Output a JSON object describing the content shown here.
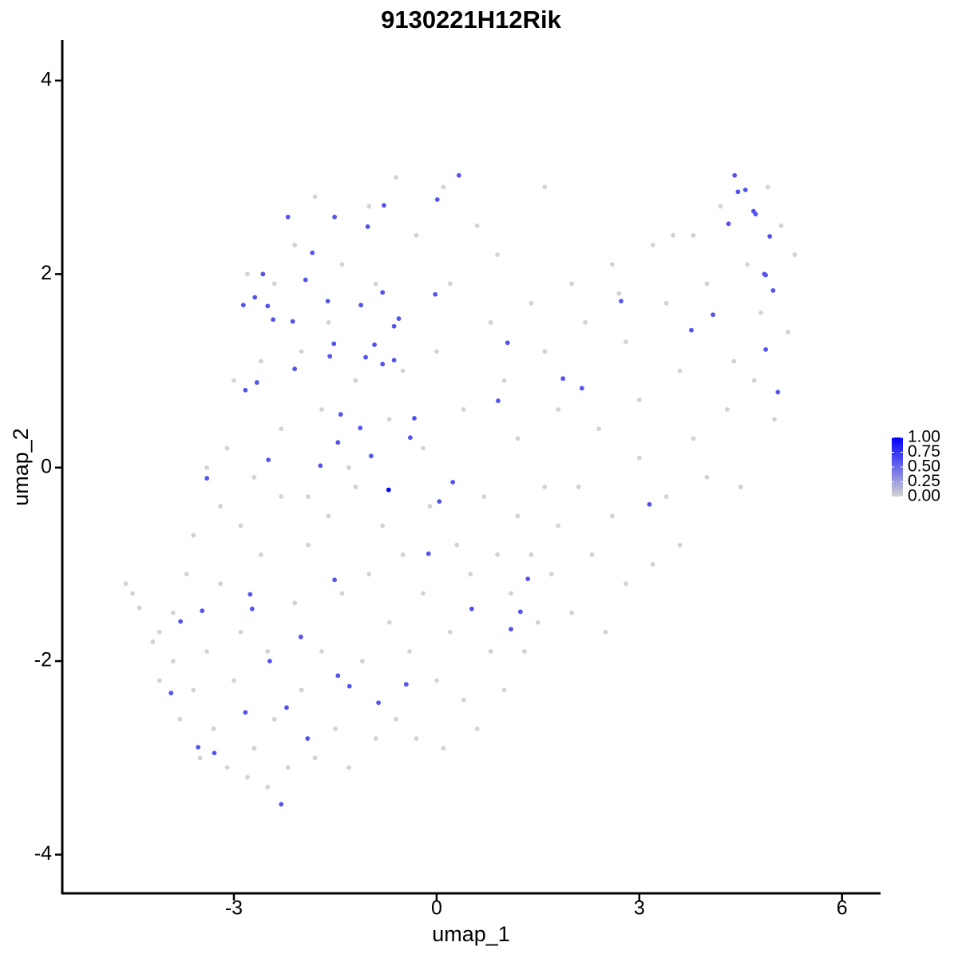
{
  "chart_data": {
    "type": "scatter",
    "title": "9130221H12Rik",
    "x_label": "umap_1",
    "y_label": "umap_2",
    "xlim": [
      -5.54,
      6.57
    ],
    "ylim": [
      -4.4,
      4.42
    ],
    "xticks": [
      -3,
      0,
      3,
      6
    ],
    "yticks": [
      -4,
      -2,
      0,
      2,
      4
    ],
    "grid": false,
    "colorbar": {
      "color_low": "#d3d3d3",
      "color_high": "#0000ff",
      "lim": [
        0,
        1
      ],
      "ticks": [
        {
          "value": 0,
          "label": "0.00"
        },
        {
          "value": 0.25,
          "label": "0.25"
        },
        {
          "value": 0.5,
          "label": "0.50"
        },
        {
          "value": 0.75,
          "label": "0.75"
        },
        {
          "value": 1,
          "label": "1.00"
        }
      ]
    },
    "x": [
      -4.6,
      -4.5,
      -4.4,
      -4.2,
      -4.1,
      -3.9,
      -3.8,
      -3.6,
      -3.5,
      -3.4,
      -3.3,
      -3.2,
      -3.1,
      -3.0,
      -2.9,
      -2.9,
      -2.8,
      -2.7,
      -2.6,
      -2.5,
      -2.5,
      -2.4,
      -2.3,
      -2.2,
      -2.1,
      -2.0,
      -1.9,
      -1.8,
      -1.7,
      -1.6,
      -1.5,
      -1.4,
      -1.3,
      -1.2,
      -1.1,
      -1.0,
      -0.9,
      -0.8,
      -0.7,
      -0.6,
      -0.5,
      -0.4,
      -0.3,
      -0.2,
      -0.1,
      0.0,
      0.1,
      0.2,
      0.3,
      0.4,
      0.5,
      0.6,
      0.7,
      0.8,
      0.9,
      1.0,
      1.1,
      1.2,
      1.3,
      1.4,
      1.5,
      1.6,
      1.7,
      1.8,
      2.0,
      2.1,
      2.3,
      2.5,
      2.6,
      2.8,
      3.0,
      3.2,
      3.4,
      3.6,
      3.8,
      4.0,
      4.3,
      4.5,
      4.7,
      5.0,
      5.2,
      5.3,
      5.1,
      4.8,
      4.6,
      4.4,
      4.2,
      4.0,
      3.8,
      3.6,
      3.4,
      3.2,
      3.0,
      2.8,
      2.6,
      2.4,
      2.2,
      2.0,
      1.8,
      1.6,
      1.4,
      1.2,
      1.0,
      0.8,
      0.6,
      0.4,
      0.2,
      0.1,
      0.0,
      -0.2,
      -0.3,
      -0.5,
      -0.6,
      -0.7,
      -0.9,
      -1.0,
      -1.2,
      -1.3,
      -1.4,
      -1.6,
      -1.7,
      -1.8,
      -1.9,
      -2.0,
      -2.1,
      -2.3,
      -2.4,
      -2.6,
      -2.7,
      -2.8,
      -3.0,
      -3.1,
      -3.2,
      -3.4,
      -3.6,
      -3.7,
      -3.9,
      -4.1,
      0.9,
      1.6,
      2.7,
      3.5,
      4.9,
      0.33,
      0.01,
      -0.78,
      -1.02,
      -1.51,
      -2.2,
      -1.84,
      -2.57,
      -1.94,
      -2.69,
      -2.86,
      -2.5,
      -2.42,
      -2.13,
      -1.61,
      -1.12,
      -0.8,
      -0.02,
      -0.56,
      -0.63,
      -1.52,
      -1.58,
      -0.92,
      -1.05,
      -0.63,
      -0.8,
      -2.1,
      -2.66,
      -2.83,
      -1.42,
      -1.13,
      -0.33,
      -0.39,
      -1.46,
      -0.97,
      -2.49,
      -3.4,
      -1.72,
      -0.71,
      0.24,
      0.04,
      -0.12,
      -1.51,
      1.35,
      -2.76,
      -2.73,
      -3.47,
      -3.79,
      1.24,
      0.52,
      1.1,
      -2.01,
      -2.47,
      -1.46,
      -0.45,
      -1.29,
      -3.93,
      -0.86,
      -2.22,
      -2.83,
      -1.91,
      -3.53,
      -3.29,
      -2.3,
      1.05,
      0.91,
      1.87,
      2.15,
      2.73,
      3.15,
      3.77,
      4.09,
      4.32,
      4.41,
      4.46,
      4.57,
      4.69,
      4.72,
      4.93,
      4.85,
      4.87,
      4.98,
      4.87,
      5.05
    ],
    "y": [
      -1.2,
      -1.3,
      -1.45,
      -1.8,
      -2.2,
      -2.0,
      -2.6,
      -2.3,
      -3.0,
      -1.9,
      -2.7,
      -1.2,
      -3.1,
      -2.2,
      -1.7,
      -0.6,
      -3.2,
      -2.9,
      -0.9,
      -3.3,
      -1.9,
      -2.6,
      -0.3,
      -3.1,
      -1.4,
      -2.3,
      -0.8,
      -3.0,
      -1.9,
      -0.5,
      -2.7,
      -1.3,
      -3.1,
      -0.2,
      -2.0,
      -1.1,
      -2.8,
      -0.6,
      -1.6,
      -2.6,
      -0.9,
      -1.9,
      -2.8,
      -1.3,
      -0.4,
      -2.2,
      -2.9,
      -1.7,
      -0.8,
      -2.4,
      -1.1,
      -2.7,
      -0.3,
      -1.9,
      -0.9,
      -2.3,
      -1.3,
      -0.5,
      -1.9,
      -0.9,
      -1.6,
      -0.2,
      -1.1,
      -0.6,
      -1.5,
      -0.2,
      -0.9,
      -1.7,
      -0.5,
      -1.2,
      0.1,
      -1.0,
      -0.3,
      -0.8,
      0.3,
      -0.1,
      0.6,
      -0.2,
      0.9,
      0.5,
      1.4,
      2.2,
      2.5,
      1.6,
      2.1,
      1.1,
      2.7,
      1.9,
      2.4,
      1.0,
      1.7,
      2.3,
      0.7,
      1.3,
      2.1,
      0.4,
      1.5,
      1.9,
      0.6,
      1.2,
      1.7,
      0.3,
      0.9,
      1.5,
      2.5,
      0.6,
      1.9,
      2.9,
      1.2,
      0.2,
      2.4,
      1.0,
      3.0,
      0.5,
      1.9,
      2.7,
      0.9,
      0.0,
      2.1,
      1.5,
      0.6,
      2.8,
      -0.3,
      1.2,
      2.3,
      0.4,
      1.9,
      1.1,
      -0.1,
      2.0,
      0.9,
      0.2,
      -0.4,
      0.0,
      -0.7,
      -1.1,
      -1.5,
      -1.7,
      2.2,
      2.9,
      1.8,
      2.4,
      2.9,
      3.02,
      2.77,
      2.71,
      2.49,
      2.59,
      2.59,
      2.22,
      2.0,
      1.94,
      1.76,
      1.68,
      1.67,
      1.53,
      1.51,
      1.72,
      1.68,
      1.81,
      1.79,
      1.54,
      1.46,
      1.28,
      1.15,
      1.27,
      1.14,
      1.11,
      1.07,
      1.02,
      0.88,
      0.8,
      0.55,
      0.41,
      0.51,
      0.31,
      0.26,
      0.12,
      0.08,
      -0.11,
      0.02,
      -0.23,
      -0.15,
      -0.35,
      -0.89,
      -1.16,
      -1.15,
      -1.31,
      -1.46,
      -1.48,
      -1.59,
      -1.49,
      -1.46,
      -1.67,
      -1.75,
      -2.0,
      -2.15,
      -2.24,
      -2.26,
      -2.33,
      -2.43,
      -2.48,
      -2.53,
      -2.8,
      -2.89,
      -2.95,
      -3.48,
      1.29,
      0.69,
      0.92,
      0.82,
      1.72,
      -0.38,
      1.42,
      1.58,
      2.52,
      3.02,
      2.85,
      2.87,
      2.65,
      2.62,
      2.39,
      2.0,
      1.99,
      1.83,
      1.22,
      0.78
    ],
    "values": [
      0,
      0,
      0,
      0,
      0,
      0,
      0,
      0,
      0,
      0,
      0,
      0,
      0,
      0,
      0,
      0,
      0,
      0,
      0,
      0,
      0,
      0,
      0,
      0,
      0,
      0,
      0,
      0,
      0,
      0,
      0,
      0,
      0,
      0,
      0,
      0,
      0,
      0,
      0,
      0,
      0,
      0,
      0,
      0,
      0,
      0,
      0,
      0,
      0,
      0,
      0,
      0,
      0,
      0,
      0,
      0,
      0,
      0,
      0,
      0,
      0,
      0,
      0,
      0,
      0,
      0,
      0,
      0,
      0,
      0,
      0,
      0,
      0,
      0,
      0,
      0,
      0,
      0,
      0,
      0,
      0,
      0,
      0,
      0,
      0,
      0,
      0,
      0,
      0,
      0,
      0,
      0,
      0,
      0,
      0,
      0,
      0,
      0,
      0,
      0,
      0,
      0,
      0,
      0,
      0,
      0,
      0,
      0,
      0,
      0,
      0,
      0,
      0,
      0,
      0,
      0,
      0,
      0,
      0,
      0,
      0,
      0,
      0,
      0,
      0,
      0,
      0,
      0,
      0,
      0,
      0,
      0,
      0,
      0,
      0,
      0,
      0,
      0,
      0,
      0,
      0,
      0,
      0,
      0.6,
      0.6,
      0.6,
      0.6,
      0.6,
      0.6,
      0.6,
      0.6,
      0.6,
      0.6,
      0.6,
      0.6,
      0.6,
      0.6,
      0.6,
      0.6,
      0.6,
      0.6,
      0.6,
      0.6,
      0.6,
      0.6,
      0.6,
      0.6,
      0.6,
      0.6,
      0.6,
      0.6,
      0.6,
      0.6,
      0.6,
      0.6,
      0.6,
      0.6,
      0.6,
      0.6,
      0.6,
      0.6,
      1,
      0.6,
      0.6,
      0.6,
      0.6,
      0.6,
      0.6,
      0.6,
      0.6,
      0.6,
      0.6,
      0.6,
      0.6,
      0.6,
      0.6,
      0.6,
      0.6,
      0.6,
      0.6,
      0.6,
      0.6,
      0.6,
      0.6,
      0.6,
      0.6,
      0.6,
      0.6,
      0.6,
      0.6,
      0.6,
      0.6,
      0.6,
      0.6,
      0.6,
      0.6,
      0.6,
      0.6,
      0.6,
      0.6,
      0.6,
      0.6,
      0.6,
      0.6,
      0.6,
      0.6,
      0.6
    ]
  }
}
